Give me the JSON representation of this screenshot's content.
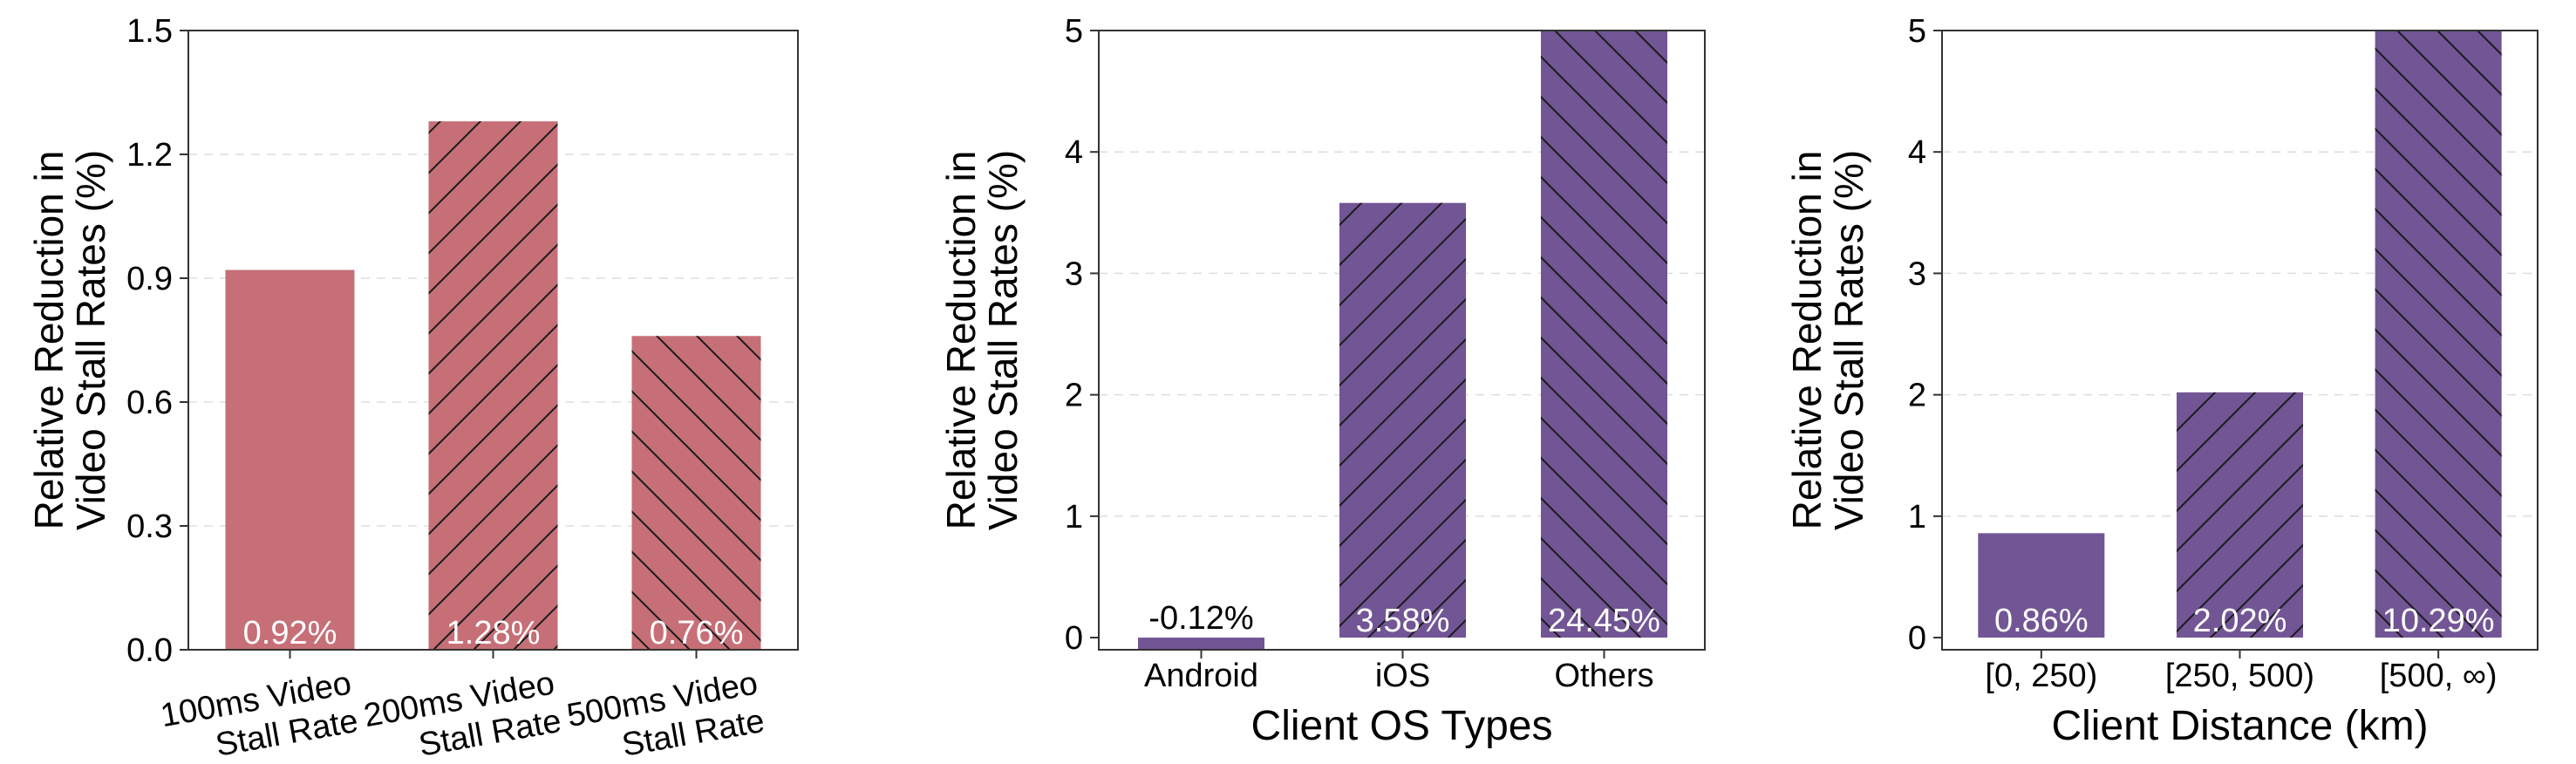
{
  "colors": {
    "red": "#c66f77",
    "purple": "#715595",
    "axis": "#333333",
    "grid": "#dddddd",
    "hatch": "#1a1a1a",
    "inner_label": "#ffffff",
    "outer_label": "#000000"
  },
  "chart_data": [
    {
      "type": "bar",
      "ylabel": [
        "Relative Reduction in",
        "Video Stall Rates (%)"
      ],
      "xlabel": "",
      "categories": [
        [
          "100ms Video",
          "Stall Rate"
        ],
        [
          "200ms Video",
          "Stall Rate"
        ],
        [
          "500ms Video",
          "Stall Rate"
        ]
      ],
      "category_label_style": "rotated",
      "values": [
        0.92,
        1.28,
        0.76
      ],
      "value_labels": [
        "0.92%",
        "1.28%",
        "0.76%"
      ],
      "hatch": [
        "none",
        "forward",
        "backward"
      ],
      "color": "red",
      "ylim": [
        0,
        1.5
      ],
      "yticks": [
        0,
        0.3,
        0.6,
        0.9,
        1.2,
        1.5
      ],
      "ytick_labels": [
        "0.0",
        "0.3",
        "0.6",
        "0.9",
        "1.2",
        "1.5"
      ],
      "grid": "horizontal-dashed"
    },
    {
      "type": "bar",
      "ylabel": [
        "Relative Reduction in",
        "Video Stall Rates (%)"
      ],
      "xlabel": "Client OS Types",
      "categories": [
        [
          "Android"
        ],
        [
          "iOS"
        ],
        [
          "Others"
        ]
      ],
      "category_label_style": "horizontal",
      "values": [
        -0.12,
        3.58,
        24.45
      ],
      "value_labels": [
        "-0.12%",
        "3.58%",
        "24.45%"
      ],
      "hatch": [
        "none",
        "forward",
        "backward"
      ],
      "color": "purple",
      "ylim": [
        -0.1,
        5
      ],
      "yticks": [
        0,
        1,
        2,
        3,
        4,
        5
      ],
      "ytick_labels": [
        "0",
        "1",
        "2",
        "3",
        "4",
        "5"
      ],
      "grid": "horizontal-dashed"
    },
    {
      "type": "bar",
      "ylabel": [
        "Relative Reduction in",
        "Video Stall Rates (%)"
      ],
      "xlabel": "Client Distance (km)",
      "categories": [
        [
          "[0, 250)"
        ],
        [
          "[250, 500)"
        ],
        [
          "[500, ∞)"
        ]
      ],
      "category_label_style": "horizontal",
      "values": [
        0.86,
        2.02,
        10.29
      ],
      "value_labels": [
        "0.86%",
        "2.02%",
        "10.29%"
      ],
      "hatch": [
        "none",
        "forward",
        "backward"
      ],
      "color": "purple",
      "ylim": [
        -0.1,
        5
      ],
      "yticks": [
        0,
        1,
        2,
        3,
        4,
        5
      ],
      "ytick_labels": [
        "0",
        "1",
        "2",
        "3",
        "4",
        "5"
      ],
      "grid": "horizontal-dashed"
    }
  ]
}
